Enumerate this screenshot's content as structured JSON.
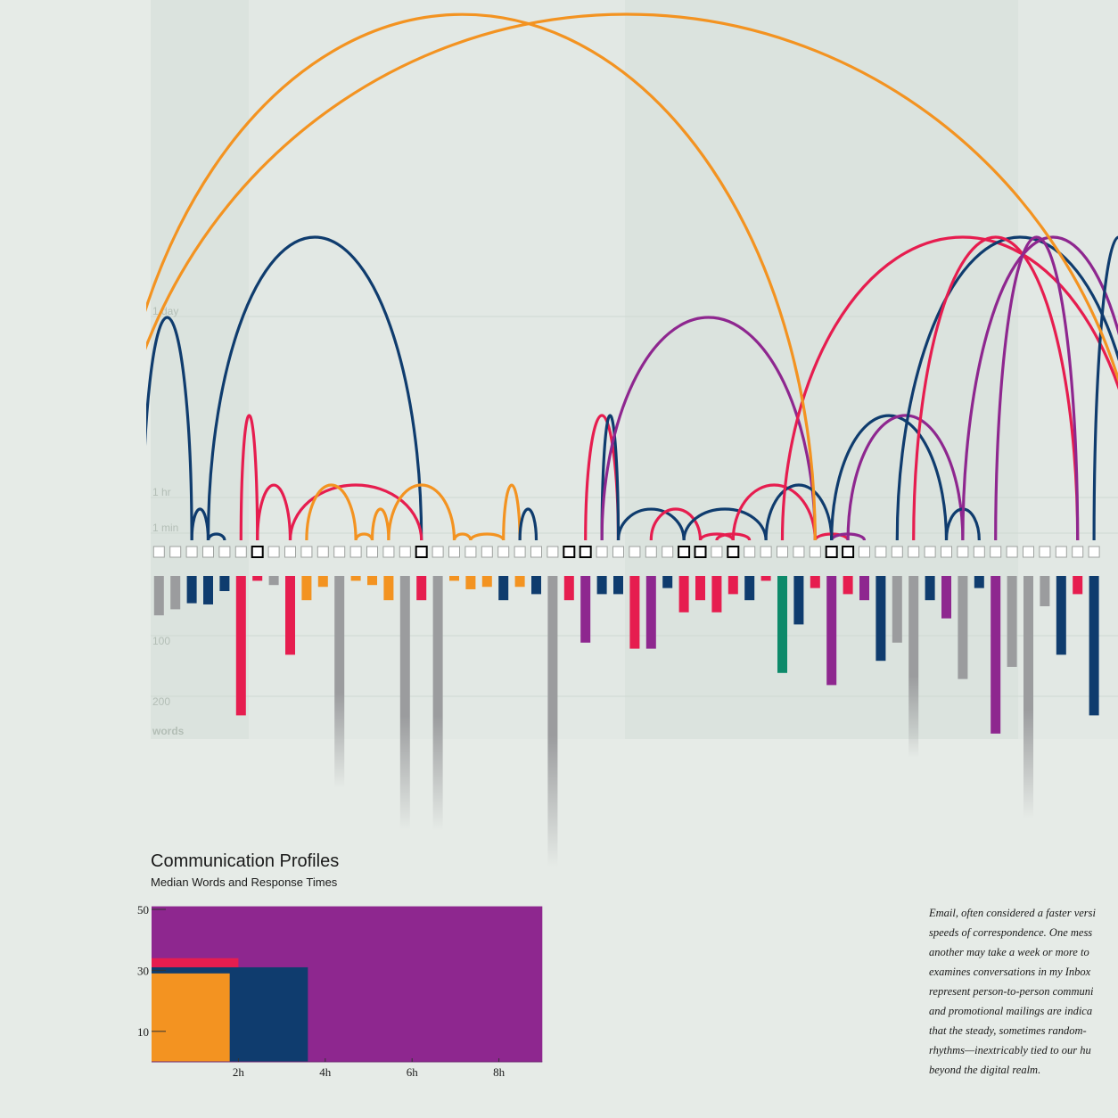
{
  "chart_data": [
    {
      "type": "arc",
      "description_axis_top": [
        "1 day",
        "1 hr",
        "1 min"
      ],
      "description_axis_bottom": [
        "100",
        "200",
        "words"
      ],
      "colors": {
        "orange": "#f39321",
        "navy": "#0f3c6e",
        "crimson": "#e61d4f",
        "purple": "#8e278f",
        "gray": "#9b9c9e",
        "teal": "#0d8a6a"
      },
      "messages": [
        {
          "color": "gray",
          "words": 65,
          "outlined": false
        },
        {
          "color": "gray",
          "words": 55,
          "outlined": false
        },
        {
          "color": "navy",
          "words": 45,
          "outlined": false
        },
        {
          "color": "navy",
          "words": 47,
          "outlined": false
        },
        {
          "color": "navy",
          "words": 25,
          "outlined": false
        },
        {
          "color": "crimson",
          "words": 230,
          "outlined": false
        },
        {
          "color": "crimson",
          "words": 8,
          "outlined": true
        },
        {
          "color": "gray",
          "words": 15,
          "outlined": false
        },
        {
          "color": "crimson",
          "words": 130,
          "outlined": false
        },
        {
          "color": "orange",
          "words": 40,
          "outlined": false
        },
        {
          "color": "orange",
          "words": 18,
          "outlined": false
        },
        {
          "color": "gray",
          "words": 350,
          "outlined": false
        },
        {
          "color": "orange",
          "words": 8,
          "outlined": false
        },
        {
          "color": "orange",
          "words": 15,
          "outlined": false
        },
        {
          "color": "orange",
          "words": 40,
          "outlined": false
        },
        {
          "color": "gray",
          "words": 420,
          "outlined": false
        },
        {
          "color": "crimson",
          "words": 40,
          "outlined": true
        },
        {
          "color": "gray",
          "words": 420,
          "outlined": false
        },
        {
          "color": "orange",
          "words": 8,
          "outlined": false
        },
        {
          "color": "orange",
          "words": 22,
          "outlined": false
        },
        {
          "color": "orange",
          "words": 18,
          "outlined": false
        },
        {
          "color": "navy",
          "words": 40,
          "outlined": false
        },
        {
          "color": "orange",
          "words": 18,
          "outlined": false
        },
        {
          "color": "navy",
          "words": 30,
          "outlined": false
        },
        {
          "color": "gray",
          "words": 480,
          "outlined": false
        },
        {
          "color": "crimson",
          "words": 40,
          "outlined": true
        },
        {
          "color": "purple",
          "words": 110,
          "outlined": true
        },
        {
          "color": "navy",
          "words": 30,
          "outlined": false
        },
        {
          "color": "navy",
          "words": 30,
          "outlined": false
        },
        {
          "color": "crimson",
          "words": 120,
          "outlined": false
        },
        {
          "color": "purple",
          "words": 120,
          "outlined": false
        },
        {
          "color": "navy",
          "words": 20,
          "outlined": false
        },
        {
          "color": "crimson",
          "words": 60,
          "outlined": true
        },
        {
          "color": "crimson",
          "words": 40,
          "outlined": true
        },
        {
          "color": "crimson",
          "words": 60,
          "outlined": false
        },
        {
          "color": "crimson",
          "words": 30,
          "outlined": true
        },
        {
          "color": "navy",
          "words": 40,
          "outlined": false
        },
        {
          "color": "crimson",
          "words": 8,
          "outlined": false
        },
        {
          "color": "teal",
          "words": 160,
          "outlined": false
        },
        {
          "color": "navy",
          "words": 80,
          "outlined": false
        },
        {
          "color": "crimson",
          "words": 20,
          "outlined": false
        },
        {
          "color": "purple",
          "words": 180,
          "outlined": true
        },
        {
          "color": "crimson",
          "words": 30,
          "outlined": true
        },
        {
          "color": "purple",
          "words": 40,
          "outlined": false
        },
        {
          "color": "navy",
          "words": 140,
          "outlined": false
        },
        {
          "color": "gray",
          "words": 110,
          "outlined": false
        },
        {
          "color": "gray",
          "words": 300,
          "outlined": false
        },
        {
          "color": "navy",
          "words": 40,
          "outlined": false
        },
        {
          "color": "purple",
          "words": 70,
          "outlined": false
        },
        {
          "color": "gray",
          "words": 170,
          "outlined": false
        },
        {
          "color": "navy",
          "words": 20,
          "outlined": false
        },
        {
          "color": "purple",
          "words": 260,
          "outlined": false
        },
        {
          "color": "gray",
          "words": 150,
          "outlined": false
        },
        {
          "color": "gray",
          "words": 400,
          "outlined": false
        },
        {
          "color": "gray",
          "words": 50,
          "outlined": false
        },
        {
          "color": "navy",
          "words": 130,
          "outlined": false
        },
        {
          "color": "crimson",
          "words": 30,
          "outlined": false
        },
        {
          "color": "navy",
          "words": 230,
          "outlined": false
        }
      ],
      "long_bars_fade": true,
      "arcs": [
        {
          "from": -1,
          "to": 2,
          "color": "navy",
          "response": "≈ 1 day"
        },
        {
          "from": 2,
          "to": 3,
          "color": "navy",
          "response": "< 1 hr"
        },
        {
          "from": 3,
          "to": 4,
          "color": "navy",
          "response": "1 min"
        },
        {
          "from": 3,
          "to": 16,
          "color": "navy",
          "response": "> 1 day"
        },
        {
          "from": 5,
          "to": 6,
          "color": "crimson",
          "response": "≈ 8 hr"
        },
        {
          "from": 6,
          "to": 8,
          "color": "crimson",
          "response": "≈ 1 hr"
        },
        {
          "from": 8,
          "to": 16,
          "color": "crimson",
          "response": "≈ 1 hr"
        },
        {
          "from": 9,
          "to": 12,
          "color": "orange",
          "response": "≈ 1 hr"
        },
        {
          "from": 12,
          "to": 13,
          "color": "orange",
          "response": "1 min"
        },
        {
          "from": 13,
          "to": 14,
          "color": "orange",
          "response": "< 1 hr"
        },
        {
          "from": 14,
          "to": 18,
          "color": "orange",
          "response": "≈ 1 hr"
        },
        {
          "from": 18,
          "to": 19,
          "color": "orange",
          "response": "1 min"
        },
        {
          "from": 19,
          "to": 21,
          "color": "orange",
          "response": "1 min"
        },
        {
          "from": 21,
          "to": 22,
          "color": "orange",
          "response": "≈ 1 hr"
        },
        {
          "from": 22,
          "to": 23,
          "color": "navy",
          "response": "< 1 hr"
        },
        {
          "from": 26,
          "to": 28,
          "color": "crimson",
          "response": "≈ 8 hr"
        },
        {
          "from": 27,
          "to": 28,
          "color": "navy",
          "response": "≈ 8 hr"
        },
        {
          "from": 27,
          "to": 40,
          "color": "purple",
          "response": "≈ 1 day"
        },
        {
          "from": 28,
          "to": 32,
          "color": "navy",
          "response": "< 1 hr"
        },
        {
          "from": 30,
          "to": 33,
          "color": "crimson",
          "response": "< 1 hr"
        },
        {
          "from": 32,
          "to": 37,
          "color": "navy",
          "response": "< 1 hr"
        },
        {
          "from": 33,
          "to": 35,
          "color": "crimson",
          "response": "1 min"
        },
        {
          "from": 34,
          "to": 36,
          "color": "crimson",
          "response": "1 min"
        },
        {
          "from": 35,
          "to": 40,
          "color": "crimson",
          "response": "≈ 1 hr"
        },
        {
          "from": 37,
          "to": 41,
          "color": "navy",
          "response": "≈ 1 hr"
        },
        {
          "from": 40,
          "to": 42,
          "color": "crimson",
          "response": "1 min"
        },
        {
          "from": 41,
          "to": 43,
          "color": "purple",
          "response": "1 min"
        },
        {
          "from": 41,
          "to": 48,
          "color": "navy",
          "response": "≈ 8 hr"
        },
        {
          "from": 42,
          "to": 49,
          "color": "purple",
          "response": "≈ 8 hr"
        },
        {
          "from": 48,
          "to": 50,
          "color": "navy",
          "response": "< 1 hr"
        },
        {
          "from": 38,
          "to": 60,
          "color": "crimson",
          "response": "> 1 day"
        },
        {
          "from": 45,
          "to": 60,
          "color": "navy",
          "response": "> 1 day"
        },
        {
          "from": 46,
          "to": 56,
          "color": "crimson",
          "response": "> 1 day"
        },
        {
          "from": 49,
          "to": 60,
          "color": "purple",
          "response": "> 1 day"
        },
        {
          "from": 51,
          "to": 56,
          "color": "purple",
          "response": "> 1 day"
        },
        {
          "from": 57,
          "to": 60,
          "color": "navy",
          "response": "> 1 day"
        },
        {
          "from": -3,
          "to": 40,
          "color": "orange",
          "response": "> 1 week"
        },
        {
          "from": -3,
          "to": 60,
          "color": "orange",
          "response": "> 1 week"
        }
      ]
    },
    {
      "type": "area",
      "title": "Communication Profiles",
      "subtitle": "Median Words and Response Times",
      "x_ticks": [
        "2h",
        "4h",
        "6h",
        "8h"
      ],
      "y_ticks": [
        50,
        30,
        10
      ],
      "xlim_hours": [
        0,
        9
      ],
      "ylim_words": [
        0,
        55
      ],
      "profiles": [
        {
          "color": "purple",
          "response_hours": 9.0,
          "words": 51
        },
        {
          "color": "crimson",
          "response_hours": 2.0,
          "words": 34
        },
        {
          "color": "navy",
          "response_hours": 3.6,
          "words": 31
        },
        {
          "color": "orange",
          "response_hours": 1.8,
          "words": 29
        }
      ]
    }
  ],
  "essay_lines": [
    "Email, often considered a faster versi",
    "speeds of correspondence. One mess",
    "another may take a week or more to",
    "examines conversations in my Inbox",
    "represent person-to-person communi",
    "and promotional mailings are indica",
    "that the steady, sometimes random-",
    "rhythms—inextricably tied to our hu",
    "beyond the digital realm."
  ]
}
